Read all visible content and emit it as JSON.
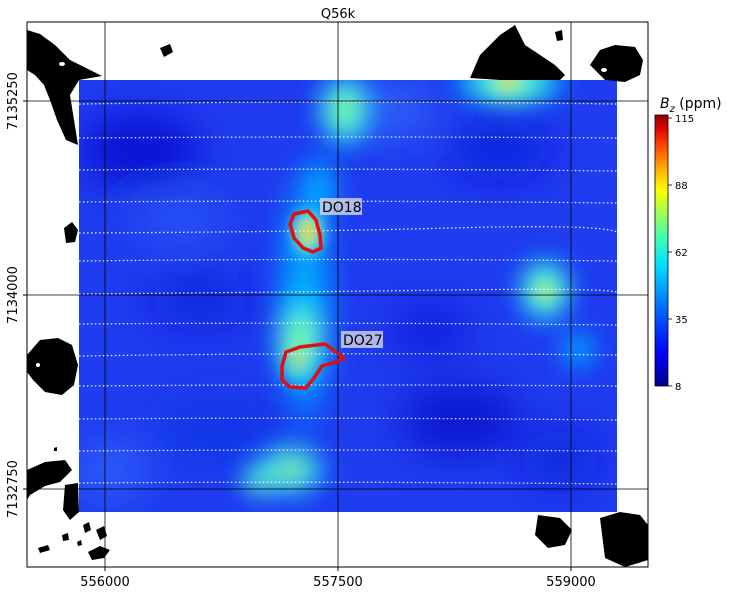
{
  "title": "Q56k",
  "colorbar": {
    "label_main": "B",
    "label_sub": "z",
    "label_unit": " (ppm)",
    "ticks": [
      "115",
      "88",
      "62",
      "35",
      "8"
    ],
    "colors": [
      "#00008c",
      "#0000ff",
      "#0050ff",
      "#00a0ff",
      "#00e0ff",
      "#40ffb0",
      "#a0ff50",
      "#ffff00",
      "#ffb000",
      "#ff5000",
      "#e00000",
      "#8c0000"
    ]
  },
  "axes": {
    "x_ticks": [
      "556000",
      "557500",
      "559000"
    ],
    "y_ticks": [
      "7135250",
      "7134000",
      "7132750"
    ]
  },
  "annotations": [
    {
      "label": "DO18"
    },
    {
      "label": "DO27"
    }
  ],
  "legend_colors": {
    "outline": "#dd1111",
    "land": "#000000",
    "flight_lines": "#ffffff"
  }
}
